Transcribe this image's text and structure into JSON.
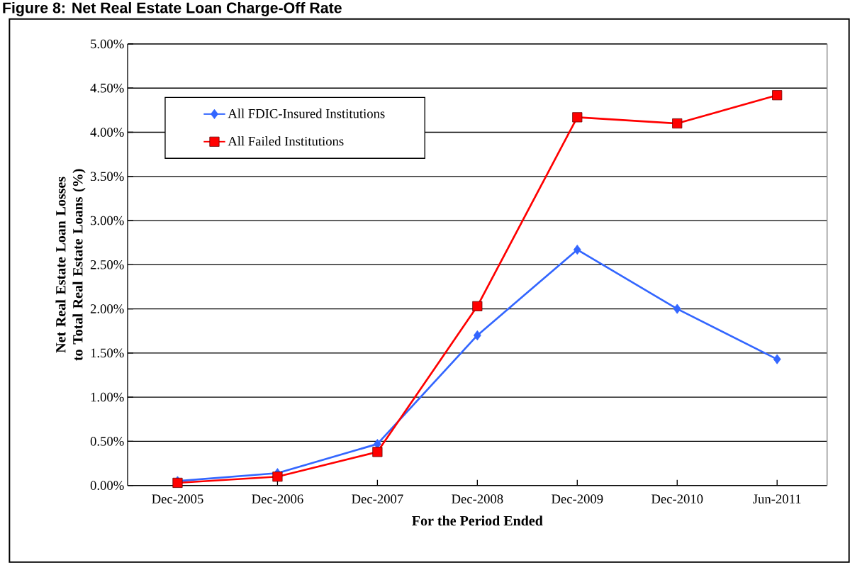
{
  "chart_data": {
    "type": "line",
    "title": "Figure 8: Net Real Estate Loan Charge-Off Rate",
    "xlabel": "For the Period Ended",
    "ylabel": "Net Real Estate Loan Losses to Total Real Estate Loans  (%)",
    "categories": [
      "Dec-2005",
      "Dec-2006",
      "Dec-2007",
      "Dec-2008",
      "Dec-2009",
      "Dec-2010",
      "Jun-2011"
    ],
    "series": [
      {
        "name": "All FDIC-Insured Institutions",
        "color": "#3366ff",
        "marker": "diamond",
        "values": [
          0.05,
          0.14,
          0.47,
          1.7,
          2.67,
          2.0,
          1.43
        ]
      },
      {
        "name": "All Failed Institutions",
        "color": "#ff0000",
        "marker": "square",
        "values": [
          0.03,
          0.1,
          0.38,
          2.03,
          4.17,
          4.1,
          4.42
        ]
      }
    ],
    "ylim": [
      0,
      5
    ],
    "yticks": [
      {
        "value": 0,
        "label": "0.00%"
      },
      {
        "value": 0.5,
        "label": "0.50%"
      },
      {
        "value": 1,
        "label": "1.00%"
      },
      {
        "value": 1.5,
        "label": "1.50%"
      },
      {
        "value": 2,
        "label": "2.00%"
      },
      {
        "value": 2.5,
        "label": "2.50%"
      },
      {
        "value": 3,
        "label": "3.00%"
      },
      {
        "value": 3.5,
        "label": "3.50%"
      },
      {
        "value": 4,
        "label": "4.00%"
      },
      {
        "value": 4.5,
        "label": "4.50%"
      },
      {
        "value": 5,
        "label": "5.00%"
      }
    ],
    "grid": "y",
    "legend": "top left"
  }
}
